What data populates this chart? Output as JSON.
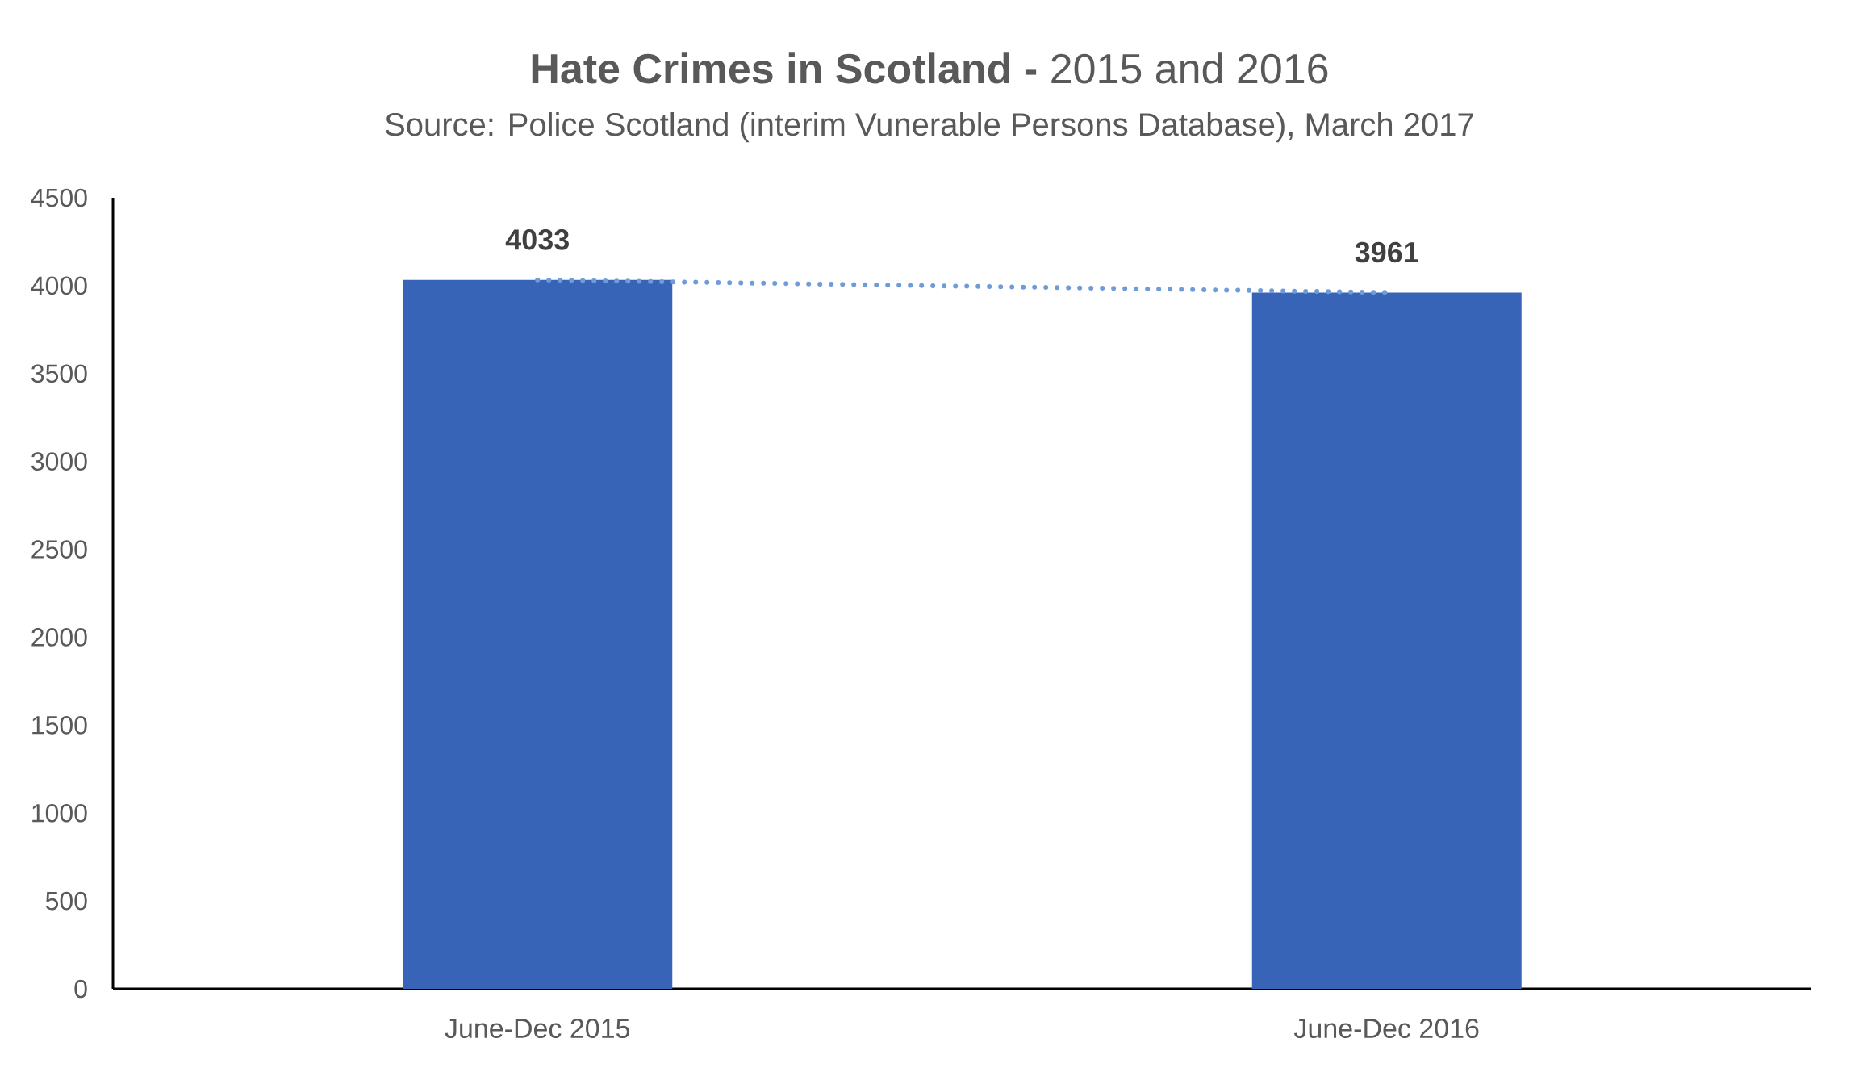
{
  "chart_data": {
    "type": "bar",
    "title": "**Hate Crimes in Scotland -** 2015 and 2016",
    "subtitle": "Source: Police Scotland (interim Vunerable Persons Database), March 2017",
    "categories": [
      "June-Dec 2015",
      "June-Dec 2016"
    ],
    "series": [
      {
        "color": "#3864b7",
        "values": [
          4033,
          3961
        ],
        "data_labels": true
      },
      {
        "type": "line",
        "color": "#6f9bd9",
        "values": [
          4033,
          3961
        ],
        "line_style": "dotted"
      }
    ],
    "ylim": [
      0,
      4500
    ],
    "yticks": [
      0,
      500,
      1000,
      1500,
      2000,
      2500,
      3000,
      3500,
      4000,
      4500
    ]
  }
}
